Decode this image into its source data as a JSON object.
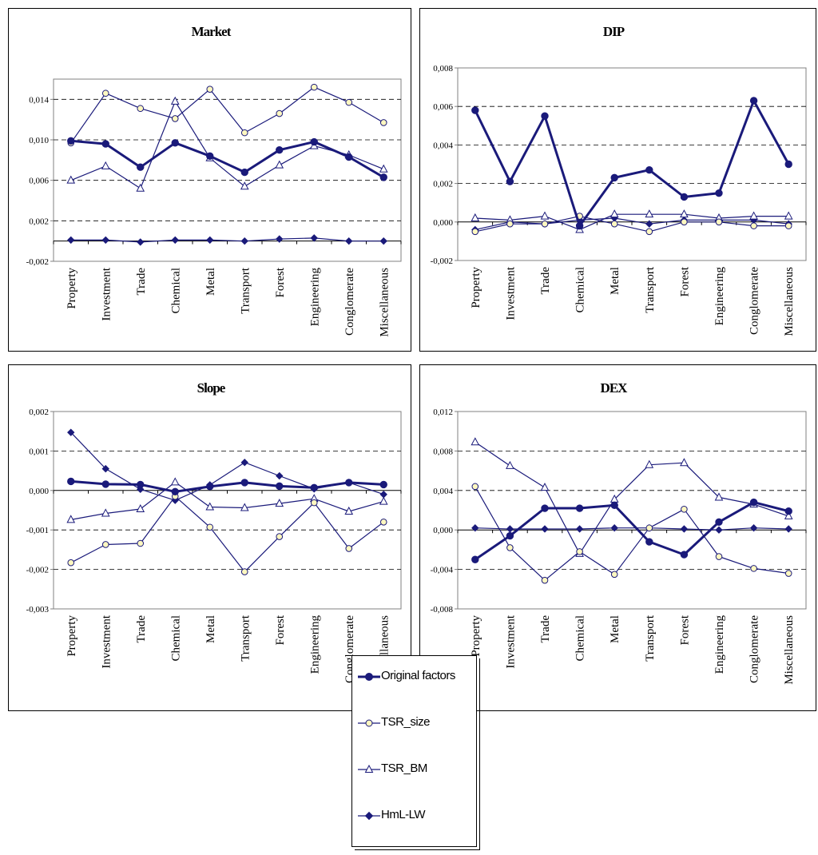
{
  "colors": {
    "line": "#1a1a7a",
    "axis": "#808080",
    "grid": "#000000",
    "open_fill": "#fff8c0"
  },
  "legend": {
    "items": [
      {
        "label": "Original factors",
        "marker": "filled-circle",
        "bold": true
      },
      {
        "label": "TSR_size",
        "marker": "open-circle",
        "bold": false
      },
      {
        "label": "TSR_BM",
        "marker": "open-triangle",
        "bold": false
      },
      {
        "label": "HmL-LW",
        "marker": "filled-diamond",
        "bold": false
      }
    ]
  },
  "chart_data": [
    {
      "type": "line",
      "title": "Market",
      "categories": [
        "Property",
        "Investment",
        "Trade",
        "Chemical",
        "Metal",
        "Transport",
        "Forest",
        "Engineering",
        "Conglomerate",
        "Miscellaneous"
      ],
      "ylim": [
        -0.002,
        0.016
      ],
      "yticks": [
        -0.002,
        0.002,
        0.006,
        0.01,
        0.014
      ],
      "ytick_labels": [
        "-0,002",
        "0,002",
        "0,006",
        "0,010",
        "0,014"
      ],
      "grid": "dashed horizontal",
      "series": [
        {
          "name": "Original factors",
          "values": [
            0.0099,
            0.0096,
            0.0073,
            0.0097,
            0.0084,
            0.0068,
            0.009,
            0.0098,
            0.0083,
            0.0063
          ]
        },
        {
          "name": "TSR_size",
          "values": [
            0.0097,
            0.0146,
            0.0131,
            0.0121,
            0.015,
            0.0107,
            0.0126,
            0.0152,
            0.0137,
            0.0117
          ]
        },
        {
          "name": "TSR_BM",
          "values": [
            0.006,
            0.0074,
            0.0052,
            0.0138,
            0.0082,
            0.0054,
            0.0075,
            0.0094,
            0.0085,
            0.0071
          ]
        },
        {
          "name": "HmL-LW",
          "values": [
            0.0001,
            0.0001,
            -0.0001,
            0.0001,
            0.0001,
            0.0,
            0.0002,
            0.0003,
            0.0,
            0.0
          ]
        }
      ]
    },
    {
      "type": "line",
      "title": "DIP",
      "categories": [
        "Property",
        "Investment",
        "Trade",
        "Chemical",
        "Metal",
        "Transport",
        "Forest",
        "Engineering",
        "Conglomerate",
        "Miscellaneous"
      ],
      "ylim": [
        -0.002,
        0.008
      ],
      "yticks": [
        -0.002,
        0.0,
        0.002,
        0.004,
        0.006,
        0.008
      ],
      "ytick_labels": [
        "-0,002",
        "0,000",
        "0,002",
        "0,004",
        "0,006",
        "0,008"
      ],
      "grid": "dashed horizontal",
      "series": [
        {
          "name": "Original factors",
          "values": [
            0.0058,
            0.0021,
            0.0055,
            -0.0002,
            0.0023,
            0.0027,
            0.0013,
            0.0015,
            0.0063,
            0.003
          ]
        },
        {
          "name": "TSR_size",
          "values": [
            -0.0005,
            -0.0001,
            -0.0001,
            0.0003,
            -0.0001,
            -0.0005,
            0.0,
            0.0,
            -0.0002,
            -0.0002
          ]
        },
        {
          "name": "TSR_BM",
          "values": [
            0.0002,
            0.0001,
            0.0003,
            -0.0004,
            0.0004,
            0.0004,
            0.0004,
            0.0002,
            0.0003,
            0.0003
          ]
        },
        {
          "name": "HmL-LW",
          "values": [
            -0.0004,
            0.0,
            -0.0001,
            0.0001,
            0.0002,
            -0.0001,
            0.0001,
            0.0001,
            0.0001,
            -0.0001
          ]
        }
      ]
    },
    {
      "type": "line",
      "title": "Slope",
      "categories": [
        "Property",
        "Investment",
        "Trade",
        "Chemical",
        "Metal",
        "Transport",
        "Forest",
        "Engineering",
        "Conglomerate",
        "Miscellaneous"
      ],
      "ylim": [
        -0.003,
        0.002
      ],
      "yticks": [
        -0.003,
        -0.002,
        -0.001,
        0.0,
        0.001,
        0.002
      ],
      "ytick_labels": [
        "-0,003",
        "-0,002",
        "-0,001",
        "0,000",
        "0,001",
        "0,002"
      ],
      "grid": "dashed horizontal",
      "series": [
        {
          "name": "Original factors",
          "values": [
            0.00023,
            0.00016,
            0.00015,
            -3e-05,
            0.0001,
            0.0002,
            0.00011,
            7e-05,
            0.0002,
            0.00015
          ]
        },
        {
          "name": "TSR_size",
          "values": [
            -0.00183,
            -0.00137,
            -0.00134,
            -0.00015,
            -0.00093,
            -0.00206,
            -0.00117,
            -0.00031,
            -0.00147,
            -0.0008
          ]
        },
        {
          "name": "TSR_BM",
          "values": [
            -0.00074,
            -0.00058,
            -0.00047,
            0.00021,
            -0.00042,
            -0.00044,
            -0.00033,
            -0.00021,
            -0.00053,
            -0.00028
          ]
        },
        {
          "name": "HmL-LW",
          "values": [
            0.00147,
            0.00055,
            3e-05,
            -0.00025,
            0.00014,
            0.00071,
            0.00037,
            4e-05,
            0.0002,
            -0.0001
          ]
        }
      ]
    },
    {
      "type": "line",
      "title": "DEX",
      "categories": [
        "Property",
        "Investment",
        "Trade",
        "Chemical",
        "Metal",
        "Transport",
        "Forest",
        "Engineering",
        "Conglomerate",
        "Miscellaneous"
      ],
      "ylim": [
        -0.008,
        0.012
      ],
      "yticks": [
        -0.008,
        -0.004,
        0.0,
        0.004,
        0.008,
        0.012
      ],
      "ytick_labels": [
        "-0,008",
        "-0,004",
        "0,000",
        "0,004",
        "0,008",
        "0,012"
      ],
      "grid": "dashed horizontal",
      "series": [
        {
          "name": "Original factors",
          "values": [
            -0.003,
            -0.0006,
            0.0022,
            0.0022,
            0.0025,
            -0.0012,
            -0.0025,
            0.0008,
            0.0028,
            0.0019
          ]
        },
        {
          "name": "TSR_size",
          "values": [
            0.0044,
            -0.0018,
            -0.0051,
            -0.0022,
            -0.0045,
            0.0002,
            0.0021,
            -0.0027,
            -0.0039,
            -0.0044
          ]
        },
        {
          "name": "TSR_BM",
          "values": [
            0.0089,
            0.0065,
            0.0043,
            -0.0024,
            0.0031,
            0.0066,
            0.0068,
            0.0033,
            0.0026,
            0.0014
          ]
        },
        {
          "name": "HmL-LW",
          "values": [
            0.0002,
            0.0001,
            0.0001,
            0.0001,
            0.0002,
            0.0002,
            0.0001,
            -0.0,
            0.0002,
            0.0001
          ]
        }
      ]
    }
  ]
}
